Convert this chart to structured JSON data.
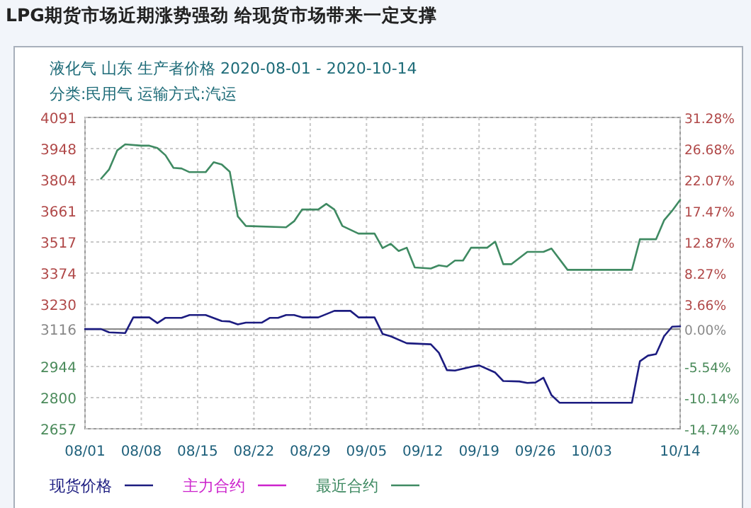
{
  "chart_data": {
    "type": "line",
    "title": "LPG期货市场近期涨势强劲 给现货市场带来一定支撑",
    "subtitle": "液化气 山东 生产者价格 2020-08-01 - 2020-10-14",
    "annotations": [
      "分类:民用气 运输方式:汽运"
    ],
    "xlim": [
      "2020-08-01",
      "2020-10-14"
    ],
    "xticks": [
      {
        "value": "2020-08-01",
        "label": "08/01"
      },
      {
        "value": "2020-08-08",
        "label": "08/08"
      },
      {
        "value": "2020-08-15",
        "label": "08/15"
      },
      {
        "value": "2020-08-22",
        "label": "08/22"
      },
      {
        "value": "2020-08-29",
        "label": "08/29"
      },
      {
        "value": "2020-09-05",
        "label": "09/05"
      },
      {
        "value": "2020-09-12",
        "label": "09/12"
      },
      {
        "value": "2020-09-19",
        "label": "09/19"
      },
      {
        "value": "2020-09-26",
        "label": "09/26"
      },
      {
        "value": "2020-10-03",
        "label": "10/03"
      },
      {
        "value": "2020-10-14",
        "label": "10/14"
      }
    ],
    "ylim": [
      2657,
      4091
    ],
    "yticks": [
      2657,
      2800,
      2944,
      {
        "value": 3087,
        "label": null
      },
      3116,
      3230,
      3374,
      3517,
      3661,
      3804,
      3948,
      4091
    ],
    "y2lim": [
      -14.74,
      31.28
    ],
    "y2ticks": [
      {
        "value": -14.74,
        "label": "-14.74%"
      },
      {
        "value": -10.14,
        "label": "-10.14%"
      },
      {
        "value": -5.54,
        "label": "-5.54%"
      },
      {
        "value": 0,
        "label": "0.00%"
      },
      {
        "value": 3.66,
        "label": "3.66%"
      },
      {
        "value": 8.27,
        "label": "8.27%"
      },
      {
        "value": 12.87,
        "label": "12.87%"
      },
      {
        "value": 17.47,
        "label": "17.47%"
      },
      {
        "value": 22.07,
        "label": "22.07%"
      },
      {
        "value": 26.68,
        "label": "26.68%"
      },
      {
        "value": 31.28,
        "label": "31.28%"
      }
    ],
    "grid": true,
    "legend": "bottom",
    "ref_lines": [
      {
        "axis": "y",
        "value": 3116,
        "color": "#8c8c8c"
      }
    ],
    "series": [
      {
        "name": "现货价格",
        "color": "#1c1c80",
        "x": [
          "2020-08-01",
          "2020-08-03",
          "2020-08-04",
          "2020-08-06",
          "2020-08-07",
          "2020-08-09",
          "2020-08-10",
          "2020-08-11",
          "2020-08-13",
          "2020-08-14",
          "2020-08-16",
          "2020-08-18",
          "2020-08-19",
          "2020-08-20",
          "2020-08-21",
          "2020-08-23",
          "2020-08-24",
          "2020-08-25",
          "2020-08-26",
          "2020-08-27",
          "2020-08-28",
          "2020-08-30",
          "2020-09-01",
          "2020-09-03",
          "2020-09-04",
          "2020-09-06",
          "2020-09-07",
          "2020-09-08",
          "2020-09-10",
          "2020-09-13",
          "2020-09-14",
          "2020-09-15",
          "2020-09-16",
          "2020-09-18",
          "2020-09-19",
          "2020-09-21",
          "2020-09-22",
          "2020-09-24",
          "2020-09-25",
          "2020-09-26",
          "2020-09-27",
          "2020-09-28",
          "2020-09-29",
          "2020-10-08",
          "2020-10-09",
          "2020-10-10",
          "2020-10-11",
          "2020-10-12",
          "2020-10-13",
          "2020-10-14"
        ],
        "values": [
          3116,
          3116,
          3101,
          3098,
          3170,
          3170,
          3144,
          3168,
          3168,
          3181,
          3181,
          3153,
          3151,
          3138,
          3146,
          3146,
          3168,
          3168,
          3181,
          3181,
          3170,
          3170,
          3200,
          3200,
          3170,
          3170,
          3094,
          3083,
          3051,
          3046,
          3007,
          2927,
          2925,
          2942,
          2949,
          2916,
          2877,
          2875,
          2868,
          2870,
          2892,
          2812,
          2777,
          2777,
          2968,
          2994,
          3001,
          3083,
          3127,
          3129
        ]
      },
      {
        "name": "主力合约",
        "color": "#cc22cc"
      },
      {
        "name": "最近合约",
        "color": "#3f8a62",
        "x": [
          "2020-08-03",
          "2020-08-04",
          "2020-08-05",
          "2020-08-06",
          "2020-08-08",
          "2020-08-09",
          "2020-08-10",
          "2020-08-11",
          "2020-08-12",
          "2020-08-13",
          "2020-08-14",
          "2020-08-16",
          "2020-08-17",
          "2020-08-18",
          "2020-08-19",
          "2020-08-20",
          "2020-08-21",
          "2020-08-26",
          "2020-08-27",
          "2020-08-28",
          "2020-08-30",
          "2020-08-31",
          "2020-09-01",
          "2020-09-02",
          "2020-09-04",
          "2020-09-06",
          "2020-09-07",
          "2020-09-08",
          "2020-09-09",
          "2020-09-10",
          "2020-09-11",
          "2020-09-13",
          "2020-09-14",
          "2020-09-15",
          "2020-09-16",
          "2020-09-17",
          "2020-09-18",
          "2020-09-20",
          "2020-09-21",
          "2020-09-22",
          "2020-09-23",
          "2020-09-25",
          "2020-09-27",
          "2020-09-28",
          "2020-09-30",
          "2020-10-08",
          "2020-10-09",
          "2020-10-11",
          "2020-10-12",
          "2020-10-13",
          "2020-10-14"
        ],
        "values": [
          3809,
          3852,
          3939,
          3967,
          3961,
          3961,
          3950,
          3917,
          3859,
          3856,
          3839,
          3839,
          3885,
          3874,
          3841,
          3635,
          3591,
          3585,
          3613,
          3667,
          3667,
          3693,
          3667,
          3591,
          3556,
          3556,
          3489,
          3509,
          3476,
          3491,
          3400,
          3395,
          3410,
          3404,
          3432,
          3432,
          3491,
          3491,
          3519,
          3415,
          3415,
          3472,
          3472,
          3487,
          3389,
          3389,
          3530,
          3530,
          3617,
          3661,
          3711
        ]
      }
    ]
  }
}
